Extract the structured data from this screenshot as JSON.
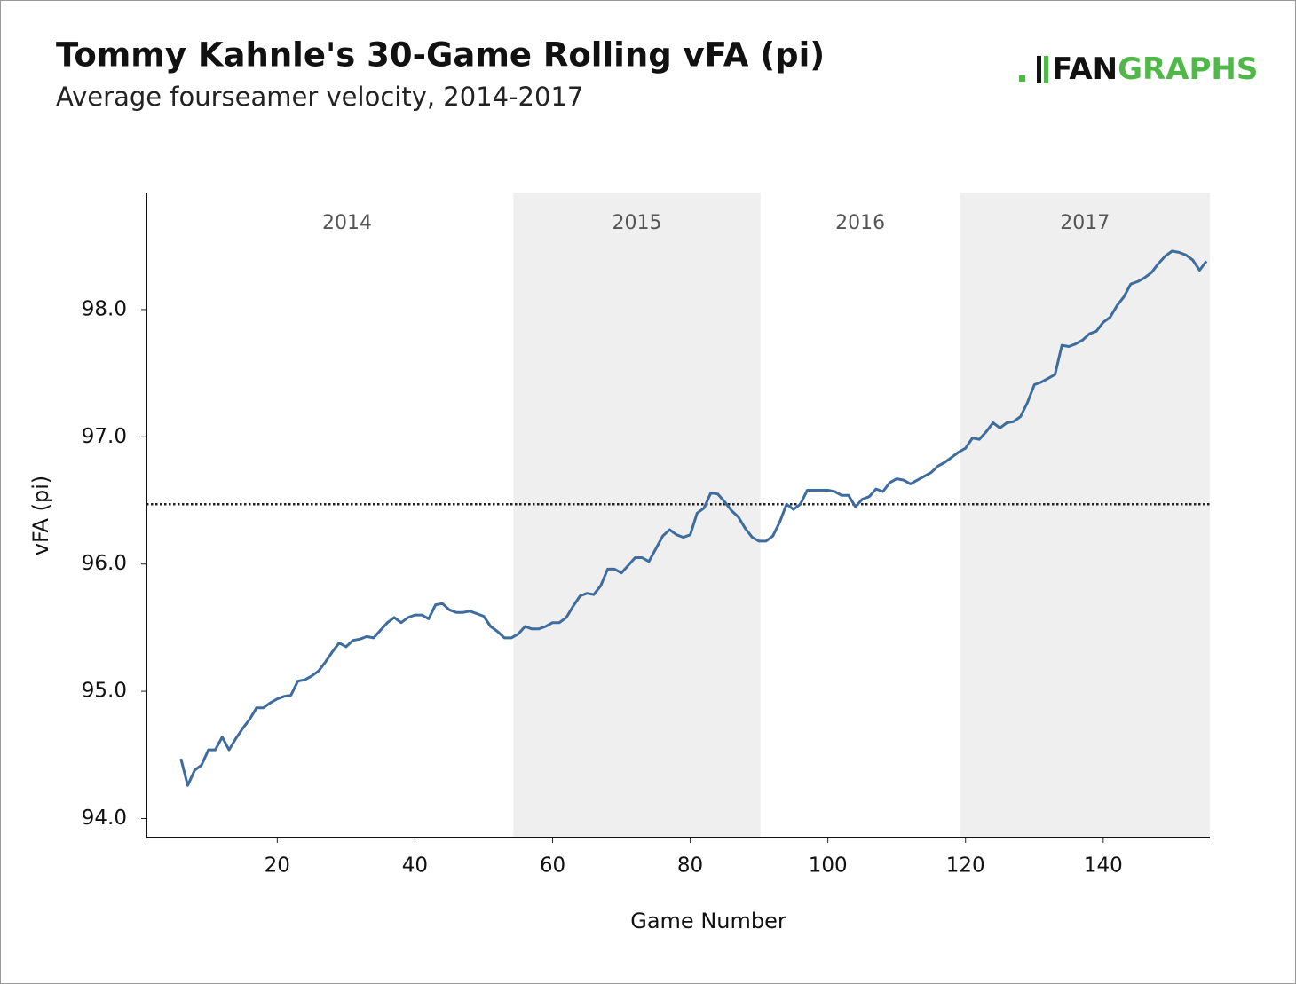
{
  "chart_data": {
    "type": "line",
    "title": "Tommy Kahnle's 30-Game Rolling vFA (pi)",
    "subtitle": "Average fourseamer velocity, 2014-2017",
    "logo": {
      "prefix": "FAN",
      "suffix": "GRAPHS"
    },
    "x_label": "Game Number",
    "y_label": "vFA (pi)",
    "xlim": [
      1,
      155.5
    ],
    "xticks": [
      20,
      40,
      60,
      80,
      100,
      120,
      140
    ],
    "ylim": [
      93.85,
      98.92
    ],
    "yticks": [
      {
        "value": 94,
        "label": "94.0"
      },
      {
        "value": 95,
        "label": "95.0"
      },
      {
        "value": 96,
        "label": "96.0"
      },
      {
        "value": 97,
        "label": "97.0"
      },
      {
        "value": 98,
        "label": "98.0"
      }
    ],
    "seasons": [
      {
        "label": "2014",
        "start": 6,
        "end": 54.3,
        "shaded": false
      },
      {
        "label": "2015",
        "start": 54.3,
        "end": 90.2,
        "shaded": true
      },
      {
        "label": "2016",
        "start": 90.2,
        "end": 119.2,
        "shaded": false
      },
      {
        "label": "2017",
        "start": 119.2,
        "end": 155.5,
        "shaded": true
      }
    ],
    "mean_line": 96.47,
    "x": [
      6,
      7,
      8,
      9,
      10,
      11,
      12,
      13,
      14,
      15,
      16,
      17,
      18,
      19,
      20,
      21,
      22,
      23,
      24,
      25,
      26,
      27,
      28,
      29,
      30,
      31,
      32,
      33,
      34,
      35,
      36,
      37,
      38,
      39,
      40,
      41,
      42,
      43,
      44,
      45,
      46,
      47,
      48,
      49,
      50,
      51,
      52,
      53,
      54,
      55,
      56,
      57,
      58,
      59,
      60,
      61,
      62,
      63,
      64,
      65,
      66,
      67,
      68,
      69,
      70,
      71,
      72,
      73,
      74,
      75,
      76,
      77,
      78,
      79,
      80,
      81,
      82,
      83,
      84,
      85,
      86,
      87,
      88,
      89,
      90,
      91,
      92,
      93,
      94,
      95,
      96,
      97,
      98,
      99,
      100,
      101,
      102,
      103,
      104,
      105,
      106,
      107,
      108,
      109,
      110,
      111,
      112,
      113,
      114,
      115,
      116,
      117,
      118,
      119,
      120,
      121,
      122,
      123,
      124,
      125,
      126,
      127,
      128,
      129,
      130,
      131,
      132,
      133,
      134,
      135,
      136,
      137,
      138,
      139,
      140,
      141,
      142,
      143,
      144,
      145,
      146,
      147,
      148,
      149,
      150,
      151,
      152,
      153,
      154,
      155
    ],
    "series": [
      {
        "color": "#3e6c9e",
        "values": [
          94.47,
          94.26,
          94.38,
          94.42,
          94.54,
          94.54,
          94.64,
          94.54,
          94.63,
          94.71,
          94.78,
          94.87,
          94.87,
          94.91,
          94.94,
          94.96,
          94.97,
          95.08,
          95.09,
          95.12,
          95.16,
          95.23,
          95.31,
          95.38,
          95.35,
          95.4,
          95.41,
          95.43,
          95.42,
          95.48,
          95.54,
          95.58,
          95.54,
          95.58,
          95.6,
          95.6,
          95.57,
          95.68,
          95.69,
          95.64,
          95.62,
          95.62,
          95.63,
          95.61,
          95.59,
          95.51,
          95.47,
          95.42,
          95.42,
          95.45,
          95.51,
          95.49,
          95.49,
          95.51,
          95.54,
          95.54,
          95.58,
          95.67,
          95.75,
          95.77,
          95.76,
          95.83,
          95.96,
          95.96,
          95.93,
          95.99,
          96.05,
          96.05,
          96.02,
          96.12,
          96.22,
          96.27,
          96.23,
          96.21,
          96.23,
          96.4,
          96.44,
          96.56,
          96.55,
          96.49,
          96.42,
          96.37,
          96.28,
          96.21,
          96.18,
          96.18,
          96.22,
          96.33,
          96.47,
          96.43,
          96.47,
          96.58,
          96.58,
          96.58,
          96.58,
          96.57,
          96.54,
          96.54,
          96.45,
          96.51,
          96.53,
          96.59,
          96.57,
          96.64,
          96.67,
          96.66,
          96.63,
          96.66,
          96.69,
          96.72,
          96.77,
          96.8,
          96.84,
          96.88,
          96.91,
          96.99,
          96.98,
          97.04,
          97.11,
          97.07,
          97.11,
          97.12,
          97.16,
          97.27,
          97.41,
          97.43,
          97.46,
          97.49,
          97.72,
          97.71,
          97.73,
          97.76,
          97.81,
          97.83,
          97.9,
          97.94,
          98.03,
          98.1,
          98.2,
          98.22,
          98.25,
          98.29,
          98.36,
          98.42,
          98.46,
          98.45,
          98.43,
          98.39,
          98.31,
          98.38
        ]
      }
    ]
  }
}
